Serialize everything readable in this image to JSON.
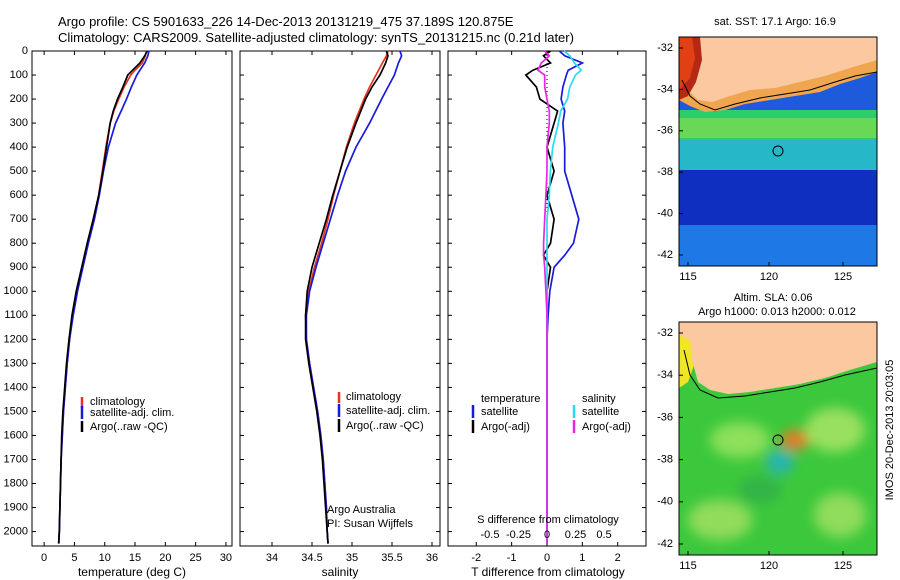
{
  "header": {
    "line1": "Argo profile: CS 5901633_226 14-Dec-2013 20131219_475 37.189S 120.875E",
    "line2": "Climatology: CARS2009. Satellite-adjusted climatology: synTS_20131215.nc (0.21d later)"
  },
  "colors": {
    "climatology": "#e8321e",
    "satellite": "#1a1adc",
    "argo": "#000000",
    "sal_satellite": "#28dcf0",
    "sal_argo": "#e628e6"
  },
  "depth_axis": {
    "ticks": [
      0,
      100,
      200,
      300,
      400,
      500,
      600,
      700,
      800,
      900,
      1000,
      1100,
      1200,
      1300,
      1400,
      1500,
      1600,
      1700,
      1800,
      1900,
      2000
    ],
    "ylim": [
      0,
      2060
    ]
  },
  "legend_labels": {
    "climatology": "climatology",
    "satellite": "satellite-adj. clim.",
    "argo": "Argo(..raw -QC)"
  },
  "credits": {
    "line1": "Argo Australia",
    "line2": "PI: Susan Wijffels"
  },
  "diff_panel": {
    "legend_temperature_title": "temperature",
    "legend_salinity_title": "salinity",
    "legend_satellite": "satellite",
    "legend_argo": "Argo(-adj)",
    "s_label": "S difference from climatology",
    "s_ticks": [
      "-0.5",
      "-0.25",
      "0",
      "0.25",
      "0.5"
    ],
    "xlabel": "T difference from climatology"
  },
  "map_sst": {
    "title": "sat. SST: 17.1 Argo: 16.9",
    "lat_ticks": [
      "-32",
      "-34",
      "-36",
      "-38",
      "-40",
      "-42"
    ],
    "lon_ticks": [
      "115",
      "120",
      "125"
    ]
  },
  "map_sla": {
    "title1": "Altim. SLA: 0.06",
    "title2": "Argo h1000: 0.013 h2000: 0.012",
    "lat_ticks": [
      "-32",
      "-34",
      "-36",
      "-38",
      "-40",
      "-42"
    ],
    "lon_ticks": [
      "115",
      "120",
      "125"
    ]
  },
  "stamp": "IMOS 20-Dec-2013 20:03:05",
  "chart_data": [
    {
      "type": "line",
      "xlabel": "temperature (deg C)",
      "ylabel": "",
      "xlim": [
        -2,
        31
      ],
      "ylim": [
        0,
        2060
      ],
      "xticks": [
        0,
        5,
        10,
        15,
        20,
        25,
        30
      ],
      "y": [
        0,
        20,
        50,
        80,
        100,
        150,
        200,
        250,
        300,
        400,
        500,
        600,
        700,
        800,
        900,
        1000,
        1100,
        1200,
        1300,
        1400,
        1500,
        1600,
        1700,
        1800,
        1900,
        2000,
        2050
      ],
      "series": [
        {
          "name": "climatology",
          "values": [
            16.9,
            16.7,
            16.2,
            15.0,
            14.3,
            13.2,
            12.3,
            11.5,
            10.9,
            10.2,
            9.6,
            9.0,
            8.2,
            7.2,
            6.3,
            5.4,
            4.7,
            4.2,
            3.8,
            3.5,
            3.2,
            3.0,
            2.8,
            2.7,
            2.6,
            2.5,
            2.4
          ]
        },
        {
          "name": "satellite-adj. clim.",
          "values": [
            17.3,
            17.1,
            16.6,
            15.8,
            15.3,
            14.4,
            13.6,
            12.7,
            11.8,
            10.6,
            9.8,
            9.1,
            8.3,
            7.3,
            6.4,
            5.5,
            4.8,
            4.2,
            3.8,
            3.5,
            3.2,
            3.0,
            2.8,
            2.7,
            2.6,
            2.5,
            2.4
          ]
        },
        {
          "name": "Argo(..raw -QC)",
          "values": [
            17.0,
            16.6,
            15.8,
            14.6,
            13.8,
            13.0,
            12.1,
            11.4,
            10.9,
            10.3,
            9.7,
            9.0,
            8.1,
            7.1,
            6.2,
            5.3,
            4.6,
            4.1,
            3.7,
            3.4,
            3.1,
            2.9,
            2.8,
            2.7,
            2.6,
            2.5,
            2.4
          ]
        }
      ]
    },
    {
      "type": "line",
      "xlabel": "salinity",
      "ylabel": "",
      "xlim": [
        33.6,
        36.1
      ],
      "ylim": [
        0,
        2060
      ],
      "xticks": [
        34,
        34.5,
        35,
        35.5,
        36
      ],
      "y": [
        0,
        20,
        50,
        100,
        150,
        200,
        300,
        400,
        500,
        600,
        700,
        800,
        900,
        1000,
        1100,
        1200,
        1300,
        1400,
        1500,
        1600,
        1700,
        1800,
        1900,
        2000,
        2050
      ],
      "series": [
        {
          "name": "climatology",
          "values": [
            35.45,
            35.43,
            35.38,
            35.3,
            35.22,
            35.15,
            35.03,
            34.93,
            34.85,
            34.77,
            34.7,
            34.62,
            34.53,
            34.46,
            34.42,
            34.43,
            34.47,
            34.52,
            34.57,
            34.61,
            34.64,
            34.66,
            34.68,
            34.69,
            34.7
          ]
        },
        {
          "name": "satellite-adj. clim.",
          "values": [
            35.6,
            35.62,
            35.58,
            35.53,
            35.45,
            35.37,
            35.22,
            35.05,
            34.92,
            34.82,
            34.73,
            34.64,
            34.55,
            34.47,
            34.43,
            34.43,
            34.47,
            34.52,
            34.57,
            34.61,
            34.64,
            34.66,
            34.68,
            34.69,
            34.7
          ]
        },
        {
          "name": "Argo(..raw -QC)",
          "values": [
            35.43,
            35.45,
            35.42,
            35.35,
            35.25,
            35.17,
            35.05,
            34.94,
            34.85,
            34.76,
            34.68,
            34.59,
            34.5,
            34.44,
            34.42,
            34.42,
            34.46,
            34.51,
            34.56,
            34.6,
            34.63,
            34.65,
            34.67,
            34.69,
            34.7
          ]
        }
      ]
    },
    {
      "type": "line",
      "xlabel": "T difference from climatology",
      "ylabel": "",
      "xlim": [
        -2.8,
        2.8
      ],
      "ylim": [
        0,
        2060
      ],
      "xticks": [
        -2,
        -1,
        0,
        1,
        2
      ],
      "x2label": "S difference from climatology",
      "x2ticks": [
        -0.5,
        -0.25,
        0,
        0.25,
        0.5
      ],
      "y": [
        0,
        20,
        50,
        80,
        100,
        150,
        200,
        250,
        300,
        400,
        500,
        600,
        700,
        800,
        850,
        900,
        1000,
        1100,
        1200,
        1400,
        1600,
        1800,
        2000,
        2050
      ],
      "series": [
        {
          "name": "temperature satellite",
          "values": [
            0.35,
            0.5,
            1.0,
            0.6,
            0.55,
            0.45,
            0.4,
            0.5,
            0.45,
            0.5,
            0.5,
            0.7,
            0.9,
            0.75,
            0.5,
            0.2,
            0.08,
            0.03,
            0.0,
            0.0,
            0.0,
            0.0,
            0.0,
            0.0
          ]
        },
        {
          "name": "temperature Argo(-adj)",
          "values": [
            0.1,
            -0.1,
            0.1,
            -0.4,
            -0.6,
            -0.3,
            -0.2,
            0.3,
            0.2,
            0.0,
            0.2,
            0.0,
            0.2,
            0.1,
            -0.1,
            0.1,
            0.0,
            0.0,
            0.0,
            0.0,
            0.0,
            0.0,
            0.0,
            0.0
          ]
        },
        {
          "name": "salinity satellite",
          "values": [
            0.15,
            0.2,
            0.24,
            0.3,
            0.25,
            0.2,
            0.18,
            0.12,
            0.1,
            0.05,
            0.03,
            0.02,
            0.0,
            0.0,
            0.0,
            0.0,
            0.0,
            0.0,
            0.0,
            0.0,
            0.0,
            0.0,
            0.0,
            0.0
          ]
        },
        {
          "name": "salinity Argo(-adj)",
          "values": [
            -0.02,
            0.02,
            -0.05,
            -0.08,
            -0.02,
            -0.02,
            0.0,
            0.02,
            0.02,
            0.0,
            0.0,
            -0.01,
            -0.02,
            -0.03,
            -0.03,
            -0.02,
            -0.01,
            0.0,
            0.0,
            0.0,
            0.0,
            0.0,
            0.0,
            0.0
          ]
        }
      ]
    }
  ]
}
